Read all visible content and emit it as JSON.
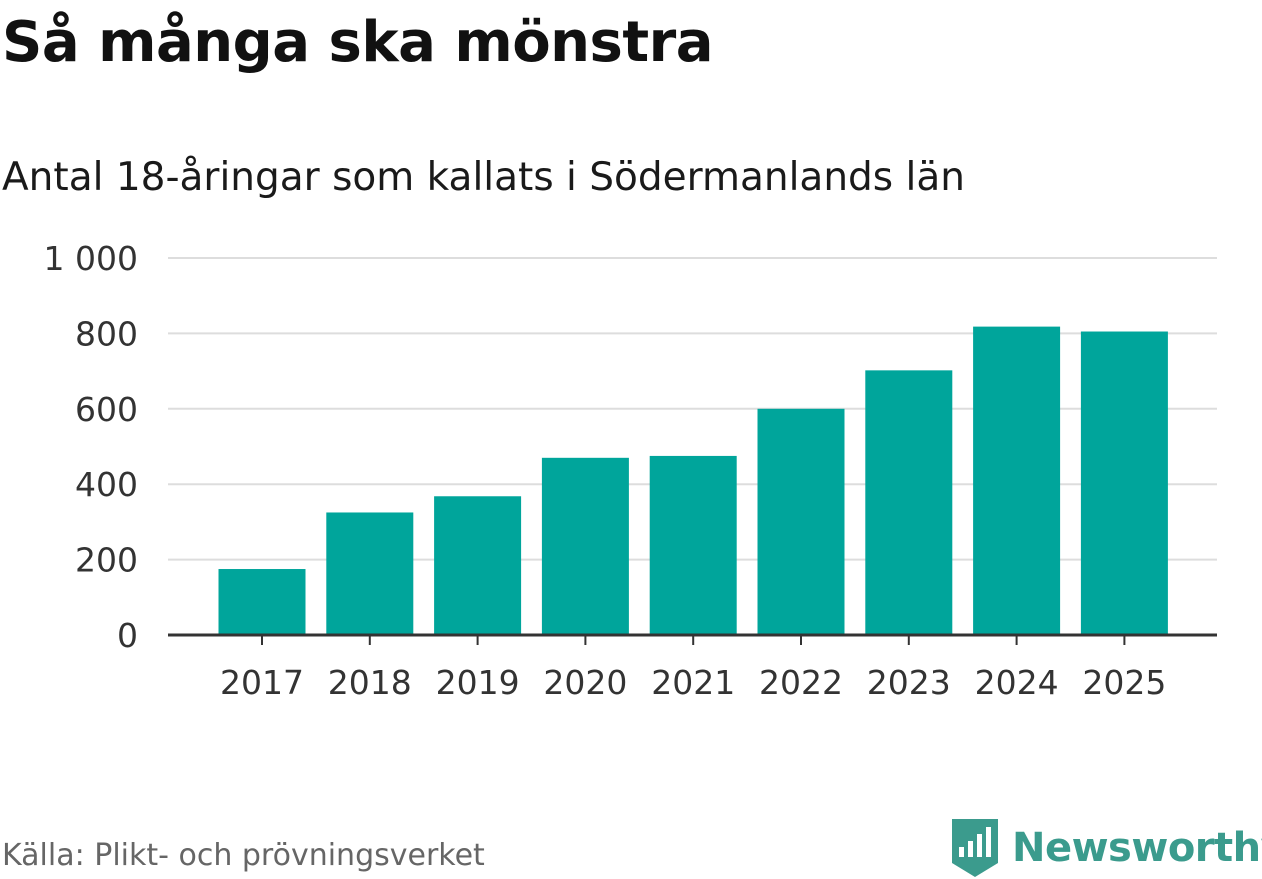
{
  "header": {
    "title": "Så många ska mönstra",
    "subtitle": "Antal 18-åringar som kallats i Södermanlands län"
  },
  "footer": {
    "source": "Källa: Plikt- och prövningsverket",
    "brand": "Newsworthy"
  },
  "colors": {
    "bar": "#00a59b",
    "grid": "#dddddd",
    "axis": "#333333",
    "brand": "#3b9b8d"
  },
  "chart_data": {
    "type": "bar",
    "title": "Så många ska mönstra",
    "subtitle": "Antal 18-åringar som kallats i Södermanlands län",
    "categories": [
      "2017",
      "2018",
      "2019",
      "2020",
      "2021",
      "2022",
      "2023",
      "2024",
      "2025"
    ],
    "values": [
      175,
      325,
      368,
      470,
      475,
      600,
      702,
      818,
      805
    ],
    "ylim": [
      0,
      1000
    ],
    "yticks": [
      0,
      200,
      400,
      600,
      800,
      1000
    ],
    "ytick_labels": [
      "0",
      "200",
      "400",
      "600",
      "800",
      "1 000"
    ],
    "xlabel": "",
    "ylabel": "",
    "grid": true,
    "legend": "none"
  }
}
